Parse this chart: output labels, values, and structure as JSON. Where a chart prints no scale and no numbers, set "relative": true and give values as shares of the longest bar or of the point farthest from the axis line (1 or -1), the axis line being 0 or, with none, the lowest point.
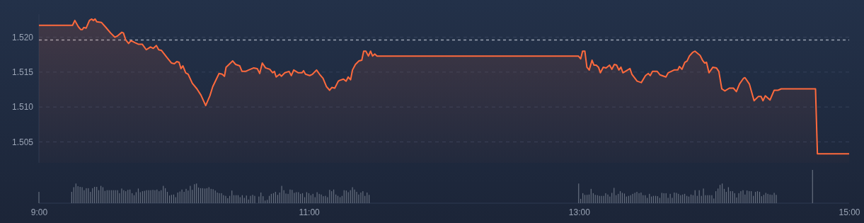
{
  "chart_data": [
    {
      "type": "area",
      "color": "#ff6a3d",
      "xlim": [
        9,
        15
      ],
      "ylim": [
        1.502,
        1.5233
      ],
      "tick_labels": "y",
      "grid": "y",
      "yticks": [
        {
          "value": 1.505,
          "label": "1.505"
        },
        {
          "value": 1.51,
          "label": "1.510"
        },
        {
          "value": 1.515,
          "label": "1.515"
        },
        {
          "value": 1.52,
          "label": "1.520"
        }
      ],
      "ref_lines": [
        {
          "axis": "y",
          "value": 1.5196,
          "color": "#9aa3b2",
          "line_style": "dashed"
        }
      ],
      "x": [
        9.0,
        9.249,
        9.266,
        9.292,
        9.309,
        9.322,
        9.332,
        9.35,
        9.374,
        9.391,
        9.403,
        9.416,
        9.429,
        9.464,
        9.496,
        9.531,
        9.562,
        9.583,
        9.614,
        9.626,
        9.643,
        9.664,
        9.682,
        9.713,
        9.736,
        9.765,
        9.795,
        9.826,
        9.847,
        9.87,
        9.887,
        9.908,
        9.948,
        9.982,
        10.003,
        10.021,
        10.038,
        10.052,
        10.066,
        10.087,
        10.105,
        10.136,
        10.17,
        10.2,
        10.235,
        10.266,
        10.287,
        10.334,
        10.357,
        10.374,
        10.386,
        10.435,
        10.457,
        10.487,
        10.504,
        10.53,
        10.553,
        10.591,
        10.617,
        10.635,
        10.654,
        10.678,
        10.71,
        10.731,
        10.744,
        10.757,
        10.783,
        10.795,
        10.821,
        10.852,
        10.869,
        10.887,
        10.921,
        10.948,
        10.96,
        10.974,
        11.005,
        11.026,
        11.056,
        11.078,
        11.104,
        11.13,
        11.153,
        11.169,
        11.191,
        11.217,
        11.226,
        11.255,
        11.275,
        11.29,
        11.308,
        11.322,
        11.344,
        11.37,
        11.391,
        11.405,
        11.421,
        11.44,
        11.456,
        11.471,
        11.487,
        11.504,
        12.995,
        13.012,
        13.026,
        13.043,
        13.058,
        13.075,
        13.096,
        13.11,
        13.127,
        13.144,
        13.158,
        13.179,
        13.2,
        13.226,
        13.243,
        13.261,
        13.278,
        13.295,
        13.31,
        13.325,
        13.377,
        13.391,
        13.43,
        13.461,
        13.492,
        13.513,
        13.527,
        13.544,
        13.579,
        13.6,
        13.643,
        13.66,
        13.704,
        13.731,
        13.743,
        13.762,
        13.783,
        13.8,
        13.817,
        13.84,
        13.858,
        13.896,
        13.914,
        13.93,
        13.944,
        13.962,
        13.991,
        14.017,
        14.035,
        14.057,
        14.08,
        14.113,
        14.143,
        14.165,
        14.188,
        14.217,
        14.229,
        14.261,
        14.296,
        14.327,
        14.348,
        14.362,
        14.379,
        14.414,
        14.445,
        14.473,
        14.497,
        14.751,
        14.765,
        15
      ],
      "values": [
        1.5217,
        1.5217,
        1.5224,
        1.5215,
        1.5211,
        1.5211,
        1.5214,
        1.5213,
        1.5224,
        1.5226,
        1.5224,
        1.5226,
        1.5222,
        1.5221,
        1.5214,
        1.5206,
        1.52,
        1.5202,
        1.5207,
        1.5206,
        1.5196,
        1.5191,
        1.5195,
        1.5192,
        1.519,
        1.519,
        1.5182,
        1.5186,
        1.5184,
        1.5188,
        1.5182,
        1.5181,
        1.5171,
        1.5163,
        1.5162,
        1.5165,
        1.5164,
        1.5155,
        1.5159,
        1.5149,
        1.5147,
        1.5134,
        1.5126,
        1.5117,
        1.5102,
        1.5116,
        1.5129,
        1.5148,
        1.5147,
        1.5144,
        1.5157,
        1.5166,
        1.5161,
        1.5159,
        1.5151,
        1.5151,
        1.5153,
        1.5156,
        1.5155,
        1.5148,
        1.5163,
        1.5156,
        1.5154,
        1.5149,
        1.5151,
        1.5143,
        1.5147,
        1.5144,
        1.5149,
        1.5151,
        1.5145,
        1.5153,
        1.5149,
        1.5149,
        1.5152,
        1.5147,
        1.5145,
        1.5147,
        1.5153,
        1.5147,
        1.5141,
        1.5129,
        1.5124,
        1.5128,
        1.5127,
        1.5137,
        1.5138,
        1.514,
        1.5137,
        1.5143,
        1.5139,
        1.5153,
        1.5161,
        1.5166,
        1.5167,
        1.518,
        1.518,
        1.5173,
        1.518,
        1.5173,
        1.5176,
        1.5173,
        1.5173,
        1.5169,
        1.518,
        1.518,
        1.5157,
        1.5153,
        1.5167,
        1.516,
        1.516,
        1.5157,
        1.5149,
        1.5157,
        1.5156,
        1.516,
        1.5154,
        1.5161,
        1.516,
        1.5153,
        1.5157,
        1.5149,
        1.5155,
        1.5147,
        1.5137,
        1.5135,
        1.5145,
        1.5148,
        1.5145,
        1.5151,
        1.5151,
        1.5146,
        1.5143,
        1.5149,
        1.5153,
        1.5153,
        1.5158,
        1.5154,
        1.5164,
        1.5166,
        1.5173,
        1.5178,
        1.518,
        1.5174,
        1.5167,
        1.5163,
        1.5164,
        1.5149,
        1.5157,
        1.5156,
        1.5151,
        1.5126,
        1.5123,
        1.5127,
        1.5127,
        1.5122,
        1.5133,
        1.5141,
        1.5142,
        1.5133,
        1.5109,
        1.5115,
        1.5115,
        1.5109,
        1.5116,
        1.511,
        1.5124,
        1.5124,
        1.5126,
        1.5126,
        1.5033,
        1.5033
      ]
    },
    {
      "type": "bar",
      "color": "#666f7f",
      "relative": true,
      "xlim": [
        9,
        15
      ],
      "tick_labels": "x",
      "xticks": [
        {
          "value": 9,
          "label": "9:00"
        },
        {
          "value": 11,
          "label": "11:00"
        },
        {
          "value": 13,
          "label": "13:00"
        },
        {
          "value": 15,
          "label": "15:00"
        }
      ],
      "x": [
        9.0,
        9.243,
        9.258,
        9.274,
        9.289,
        9.305,
        9.32,
        9.335,
        9.351,
        9.366,
        9.382,
        9.397,
        9.412,
        9.428,
        9.443,
        9.459,
        9.474,
        9.489,
        9.505,
        9.52,
        9.536,
        9.551,
        9.566,
        9.582,
        9.597,
        9.613,
        9.628,
        9.643,
        9.659,
        9.674,
        9.69,
        9.705,
        9.72,
        9.736,
        9.751,
        9.767,
        9.782,
        9.797,
        9.813,
        9.828,
        9.844,
        9.859,
        9.874,
        9.89,
        9.905,
        9.921,
        9.936,
        9.951,
        9.967,
        9.982,
        9.998,
        10.013,
        10.028,
        10.044,
        10.059,
        10.075,
        10.09,
        10.105,
        10.121,
        10.136,
        10.152,
        10.167,
        10.182,
        10.198,
        10.213,
        10.229,
        10.244,
        10.259,
        10.275,
        10.29,
        10.306,
        10.321,
        10.336,
        10.352,
        10.367,
        10.383,
        10.398,
        10.413,
        10.429,
        10.444,
        10.46,
        10.475,
        10.49,
        10.506,
        10.521,
        10.537,
        10.552,
        10.567,
        10.583,
        10.598,
        10.629,
        10.644,
        10.66,
        10.675,
        10.691,
        10.706,
        10.721,
        10.737,
        10.752,
        10.768,
        10.783,
        10.798,
        10.814,
        10.829,
        10.845,
        10.86,
        10.875,
        10.891,
        10.906,
        10.922,
        10.937,
        10.952,
        10.968,
        10.983,
        10.999,
        11.014,
        11.029,
        11.045,
        11.06,
        11.076,
        11.091,
        11.106,
        11.122,
        11.137,
        11.153,
        11.168,
        11.183,
        11.199,
        11.214,
        11.23,
        11.245,
        11.26,
        11.276,
        11.291,
        11.307,
        11.322,
        11.337,
        11.353,
        11.368,
        11.384,
        11.399,
        11.414,
        11.43,
        11.445,
        12.997,
        13.012,
        13.028,
        13.043,
        13.059,
        13.074,
        13.089,
        13.105,
        13.12,
        13.136,
        13.151,
        13.166,
        13.182,
        13.197,
        13.213,
        13.228,
        13.243,
        13.259,
        13.274,
        13.29,
        13.305,
        13.32,
        13.336,
        13.351,
        13.367,
        13.382,
        13.397,
        13.413,
        13.428,
        13.444,
        13.459,
        13.474,
        13.49,
        13.505,
        13.521,
        13.536,
        13.551,
        13.567,
        13.582,
        13.598,
        13.613,
        13.628,
        13.644,
        13.659,
        13.675,
        13.69,
        13.705,
        13.721,
        13.736,
        13.752,
        13.767,
        13.782,
        13.798,
        13.813,
        13.829,
        13.844,
        13.859,
        13.875,
        13.89,
        13.906,
        13.921,
        13.936,
        13.952,
        13.967,
        13.983,
        13.998,
        14.013,
        14.029,
        14.044,
        14.06,
        14.075,
        14.09,
        14.106,
        14.121,
        14.137,
        14.152,
        14.167,
        14.183,
        14.198,
        14.214,
        14.229,
        14.244,
        14.26,
        14.275,
        14.291,
        14.306,
        14.321,
        14.337,
        14.352,
        14.368,
        14.383,
        14.398,
        14.414,
        14.429,
        14.445,
        14.46,
        14.729
      ],
      "values": [
        0.34,
        0.34,
        0.48,
        0.59,
        0.51,
        0.49,
        0.48,
        0.39,
        0.45,
        0.45,
        0.34,
        0.45,
        0.49,
        0.49,
        0.39,
        0.52,
        0.48,
        0.37,
        0.39,
        0.39,
        0.39,
        0.39,
        0.39,
        0.39,
        0.3,
        0.44,
        0.39,
        0.36,
        0.4,
        0.41,
        0.3,
        0.24,
        0.33,
        0.44,
        0.33,
        0.36,
        0.37,
        0.39,
        0.39,
        0.39,
        0.4,
        0.39,
        0.41,
        0.36,
        0.39,
        0.52,
        0.45,
        0.34,
        0.23,
        0.25,
        0.26,
        0.18,
        0.32,
        0.35,
        0.41,
        0.34,
        0.43,
        0.38,
        0.52,
        0.4,
        0.57,
        0.59,
        0.47,
        0.45,
        0.45,
        0.44,
        0.45,
        0.48,
        0.43,
        0.42,
        0.38,
        0.32,
        0.3,
        0.3,
        0.24,
        0.22,
        0.15,
        0.22,
        0.38,
        0.24,
        0.24,
        0.24,
        0.18,
        0.24,
        0.16,
        0.23,
        0.11,
        0.22,
        0.25,
        0.22,
        0.2,
        0.32,
        0.21,
        0.08,
        0.1,
        0.22,
        0.28,
        0.3,
        0.34,
        0.25,
        0.32,
        0.52,
        0.39,
        0.29,
        0.28,
        0.41,
        0.4,
        0.31,
        0.33,
        0.33,
        0.28,
        0.3,
        0.18,
        0.33,
        0.3,
        0.24,
        0.28,
        0.18,
        0.33,
        0.28,
        0.26,
        0.21,
        0.22,
        0.18,
        0.4,
        0.36,
        0.41,
        0.26,
        0.22,
        0.18,
        0.22,
        0.39,
        0.38,
        0.33,
        0.39,
        0.48,
        0.41,
        0.34,
        0.26,
        0.32,
        0.36,
        0.22,
        0.32,
        0.25,
        0.59,
        0.13,
        0.3,
        0.25,
        0.25,
        0.26,
        0.43,
        0.3,
        0.25,
        0.24,
        0.22,
        0.22,
        0.22,
        0.3,
        0.26,
        0.2,
        0.31,
        0.46,
        0.24,
        0.28,
        0.36,
        0.31,
        0.29,
        0.2,
        0.22,
        0.24,
        0.28,
        0.31,
        0.34,
        0.3,
        0.32,
        0.24,
        0.24,
        0.16,
        0.28,
        0.2,
        0.22,
        0.22,
        0.21,
        0.16,
        0.31,
        0.3,
        0.3,
        0.16,
        0.28,
        0.16,
        0.32,
        0.31,
        0.28,
        0.24,
        0.26,
        0.28,
        0.22,
        0.2,
        0.26,
        0.24,
        0.39,
        0.22,
        0.39,
        0.22,
        0.44,
        0.24,
        0.24,
        0.24,
        0.24,
        0.14,
        0.36,
        0.44,
        0.55,
        0.59,
        0.43,
        0.34,
        0.48,
        0.36,
        0.36,
        0.3,
        0.17,
        0.3,
        0.36,
        0.39,
        0.26,
        0.38,
        0.36,
        0.36,
        0.22,
        0.34,
        0.36,
        0.34,
        0.21,
        0.25,
        0.31,
        0.28,
        0.26,
        0.25,
        0.31,
        0.25,
        1
      ]
    }
  ]
}
